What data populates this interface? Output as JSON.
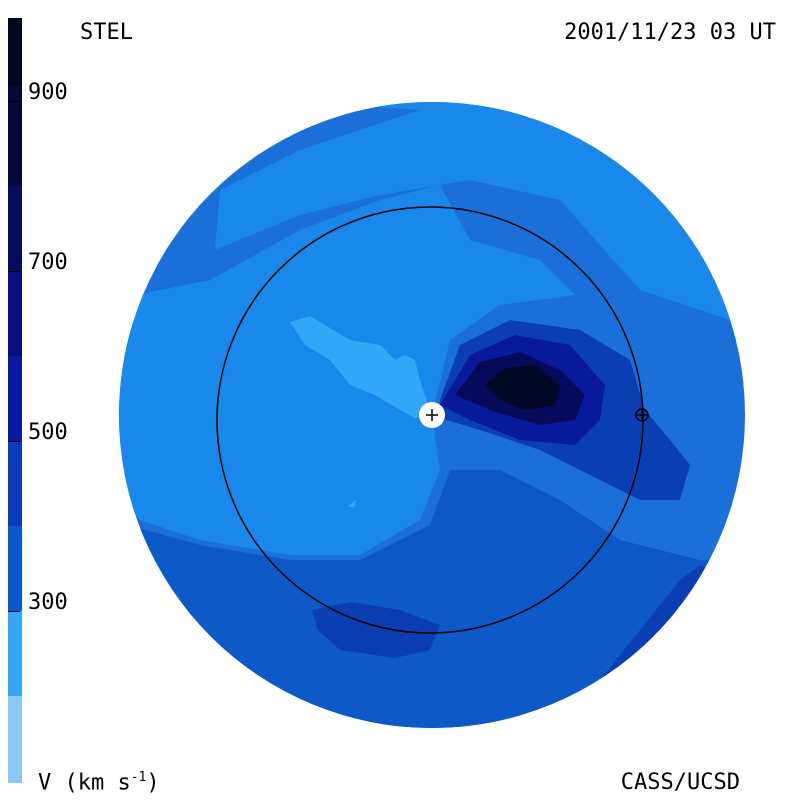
{
  "header": {
    "left": "STEL",
    "right": "2001/11/23 03 UT"
  },
  "footer": {
    "left": "V (km s",
    "left_sup": "-1",
    "left_close": ")",
    "right": "CASS/UCSD"
  },
  "colorbar": {
    "ticks": [
      "900",
      "700",
      "500",
      "300"
    ],
    "levels": [
      {
        "color": "#03071f"
      },
      {
        "color": "#050a3a"
      },
      {
        "color": "#060b5e"
      },
      {
        "color": "#08107e"
      },
      {
        "color": "#0a179f"
      },
      {
        "color": "#0a3bb8"
      },
      {
        "color": "#0a57c8"
      },
      {
        "color": "#1985e6"
      },
      {
        "color": "#37a6f5"
      },
      {
        "color": "#8cc9f5"
      }
    ]
  },
  "colors": {
    "disk_base": "#1a6fd9",
    "light": "#1a87ea",
    "lighter": "#35a5f5",
    "mid": "#0e59c8",
    "dark": "#0b3eb3",
    "darker": "#081a9c",
    "darkest": "#060a5a",
    "core": "#030824"
  }
}
